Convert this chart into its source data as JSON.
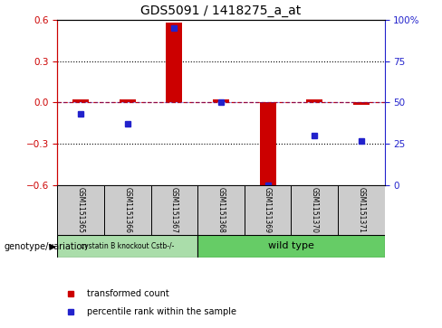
{
  "title": "GDS5091 / 1418275_a_at",
  "samples": [
    "GSM1151365",
    "GSM1151366",
    "GSM1151367",
    "GSM1151368",
    "GSM1151369",
    "GSM1151370",
    "GSM1151371"
  ],
  "red_values": [
    0.02,
    0.02,
    0.58,
    0.02,
    -0.6,
    0.02,
    -0.02
  ],
  "blue_values": [
    43,
    37,
    95,
    50,
    0,
    30,
    27
  ],
  "ylim_left": [
    -0.6,
    0.6
  ],
  "ylim_right": [
    0,
    100
  ],
  "yticks_left": [
    -0.6,
    -0.3,
    0.0,
    0.3,
    0.6
  ],
  "yticks_right": [
    0,
    25,
    50,
    75,
    100
  ],
  "ytick_labels_right": [
    "0",
    "25",
    "50",
    "75",
    "100%"
  ],
  "red_color": "#cc0000",
  "blue_color": "#2222cc",
  "group1_label": "cystatin B knockout Cstb-/-",
  "group2_label": "wild type",
  "group1_count": 3,
  "group2_count": 4,
  "group1_color": "#aaddaa",
  "group2_color": "#66cc66",
  "genotype_label": "genotype/variation",
  "legend_red": "transformed count",
  "legend_blue": "percentile rank within the sample",
  "bar_width": 0.35,
  "sample_box_color": "#cccccc",
  "plot_bg": "#ffffff"
}
